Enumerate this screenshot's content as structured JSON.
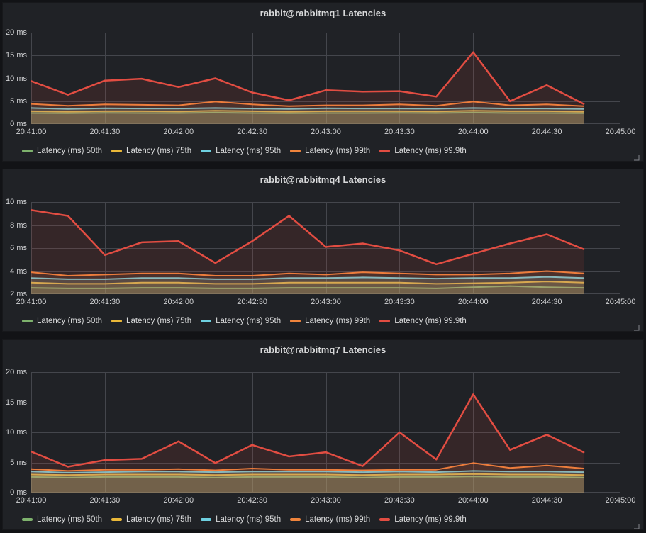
{
  "theme": {
    "page_bg": "#121316",
    "panel_bg": "#202226",
    "grid_color": "#44464c",
    "title_color": "#d8d9da",
    "axis_text_color": "#d0d1d3",
    "legend_text_color": "#d8d9da"
  },
  "chart_data": [
    {
      "type": "area",
      "title": "rabbit@rabbitmq1 Latencies",
      "unit": "ms",
      "ylim": [
        0,
        20
      ],
      "y_ticks": [
        0,
        5,
        10,
        15,
        20
      ],
      "x_tick_labels": [
        "20:41:00",
        "20:41:30",
        "20:42:00",
        "20:42:30",
        "20:43:00",
        "20:43:30",
        "20:44:00",
        "20:44:30",
        "20:45:00"
      ],
      "x_times": [
        "20:41:00",
        "20:41:15",
        "20:41:30",
        "20:41:45",
        "20:42:00",
        "20:42:15",
        "20:42:30",
        "20:42:45",
        "20:43:00",
        "20:43:15",
        "20:43:30",
        "20:43:45",
        "20:44:00",
        "20:44:15",
        "20:44:30",
        "20:44:45"
      ],
      "grid": true,
      "legend_position": "bottom",
      "series": [
        {
          "name": "Latency (ms) 50th",
          "color": "#7EB26D",
          "values": [
            2.4,
            2.35,
            2.45,
            2.4,
            2.4,
            2.5,
            2.4,
            2.35,
            2.4,
            2.4,
            2.45,
            2.4,
            2.5,
            2.4,
            2.4,
            2.35
          ]
        },
        {
          "name": "Latency (ms) 75th",
          "color": "#EAB839",
          "values": [
            2.8,
            2.7,
            2.8,
            2.8,
            2.75,
            2.9,
            2.8,
            2.7,
            2.8,
            2.8,
            2.8,
            2.75,
            2.9,
            2.8,
            2.8,
            2.7
          ]
        },
        {
          "name": "Latency (ms) 95th",
          "color": "#6ED0E0",
          "values": [
            3.5,
            3.3,
            3.45,
            3.4,
            3.4,
            3.5,
            3.4,
            3.3,
            3.45,
            3.4,
            3.4,
            3.35,
            3.5,
            3.4,
            3.4,
            3.3
          ]
        },
        {
          "name": "Latency (ms) 99th",
          "color": "#EF843C",
          "values": [
            4.4,
            4.0,
            4.3,
            4.2,
            4.1,
            4.9,
            4.3,
            3.9,
            4.1,
            4.1,
            4.3,
            4.0,
            4.9,
            4.1,
            4.3,
            3.9
          ]
        },
        {
          "name": "Latency (ms) 99.9th",
          "color": "#E24D42",
          "values": [
            9.4,
            6.4,
            9.5,
            9.9,
            8.1,
            10.0,
            6.9,
            5.2,
            7.4,
            7.1,
            7.2,
            6.0,
            15.7,
            5.0,
            8.5,
            4.4
          ]
        }
      ]
    },
    {
      "type": "area",
      "title": "rabbit@rabbitmq4 Latencies",
      "unit": "ms",
      "ylim": [
        2,
        10
      ],
      "y_ticks": [
        2,
        4,
        6,
        8,
        10
      ],
      "x_tick_labels": [
        "20:41:00",
        "20:41:30",
        "20:42:00",
        "20:42:30",
        "20:43:00",
        "20:43:30",
        "20:44:00",
        "20:44:30",
        "20:45:00"
      ],
      "x_times": [
        "20:41:00",
        "20:41:15",
        "20:41:30",
        "20:41:45",
        "20:42:00",
        "20:42:15",
        "20:42:30",
        "20:42:45",
        "20:43:00",
        "20:43:15",
        "20:43:30",
        "20:43:45",
        "20:44:00",
        "20:44:15",
        "20:44:30",
        "20:44:45"
      ],
      "grid": true,
      "legend_position": "bottom",
      "series": [
        {
          "name": "Latency (ms) 50th",
          "color": "#7EB26D",
          "values": [
            2.55,
            2.5,
            2.5,
            2.55,
            2.55,
            2.5,
            2.5,
            2.55,
            2.55,
            2.55,
            2.55,
            2.5,
            2.6,
            2.7,
            2.6,
            2.55
          ]
        },
        {
          "name": "Latency (ms) 75th",
          "color": "#EAB839",
          "values": [
            3.0,
            2.9,
            2.9,
            3.0,
            3.0,
            2.9,
            2.9,
            3.0,
            3.0,
            3.0,
            3.0,
            2.9,
            2.95,
            3.0,
            3.1,
            3.0
          ]
        },
        {
          "name": "Latency (ms) 95th",
          "color": "#6ED0E0",
          "values": [
            3.4,
            3.3,
            3.3,
            3.4,
            3.4,
            3.3,
            3.3,
            3.4,
            3.4,
            3.45,
            3.4,
            3.35,
            3.4,
            3.4,
            3.5,
            3.4
          ]
        },
        {
          "name": "Latency (ms) 99th",
          "color": "#EF843C",
          "values": [
            3.9,
            3.6,
            3.7,
            3.8,
            3.8,
            3.6,
            3.6,
            3.8,
            3.7,
            3.9,
            3.8,
            3.7,
            3.7,
            3.8,
            4.0,
            3.8
          ]
        },
        {
          "name": "Latency (ms) 99.9th",
          "color": "#E24D42",
          "values": [
            9.3,
            8.8,
            5.4,
            6.5,
            6.6,
            4.7,
            6.6,
            8.8,
            6.1,
            6.4,
            5.8,
            4.6,
            5.5,
            6.4,
            7.2,
            5.9
          ]
        }
      ]
    },
    {
      "type": "area",
      "title": "rabbit@rabbitmq7 Latencies",
      "unit": "ms",
      "ylim": [
        0,
        20
      ],
      "y_ticks": [
        0,
        5,
        10,
        15,
        20
      ],
      "x_tick_labels": [
        "20:41:00",
        "20:41:30",
        "20:42:00",
        "20:42:30",
        "20:43:00",
        "20:43:30",
        "20:44:00",
        "20:44:30",
        "20:45:00"
      ],
      "x_times": [
        "20:41:00",
        "20:41:15",
        "20:41:30",
        "20:41:45",
        "20:42:00",
        "20:42:15",
        "20:42:30",
        "20:42:45",
        "20:43:00",
        "20:43:15",
        "20:43:30",
        "20:43:45",
        "20:44:00",
        "20:44:15",
        "20:44:30",
        "20:44:45"
      ],
      "grid": true,
      "legend_position": "bottom",
      "series": [
        {
          "name": "Latency (ms) 50th",
          "color": "#7EB26D",
          "values": [
            2.6,
            2.5,
            2.6,
            2.6,
            2.6,
            2.5,
            2.6,
            2.6,
            2.6,
            2.5,
            2.6,
            2.6,
            2.7,
            2.6,
            2.6,
            2.5
          ]
        },
        {
          "name": "Latency (ms) 75th",
          "color": "#EAB839",
          "values": [
            3.0,
            2.9,
            3.0,
            3.0,
            3.0,
            2.9,
            3.0,
            3.0,
            3.0,
            2.9,
            3.0,
            3.0,
            3.1,
            3.0,
            3.0,
            2.9
          ]
        },
        {
          "name": "Latency (ms) 95th",
          "color": "#6ED0E0",
          "values": [
            3.5,
            3.3,
            3.4,
            3.5,
            3.5,
            3.4,
            3.5,
            3.5,
            3.5,
            3.4,
            3.5,
            3.4,
            3.6,
            3.5,
            3.5,
            3.4
          ]
        },
        {
          "name": "Latency (ms) 99th",
          "color": "#EF843C",
          "values": [
            3.9,
            3.6,
            3.8,
            3.8,
            3.9,
            3.7,
            4.0,
            3.8,
            3.8,
            3.7,
            3.8,
            3.8,
            4.9,
            4.1,
            4.5,
            4.0
          ]
        },
        {
          "name": "Latency (ms) 99.9th",
          "color": "#E24D42",
          "values": [
            6.8,
            4.3,
            5.4,
            5.6,
            8.5,
            4.9,
            7.9,
            6.0,
            6.7,
            4.4,
            10.0,
            5.5,
            16.3,
            7.1,
            9.6,
            6.7
          ]
        }
      ]
    }
  ]
}
